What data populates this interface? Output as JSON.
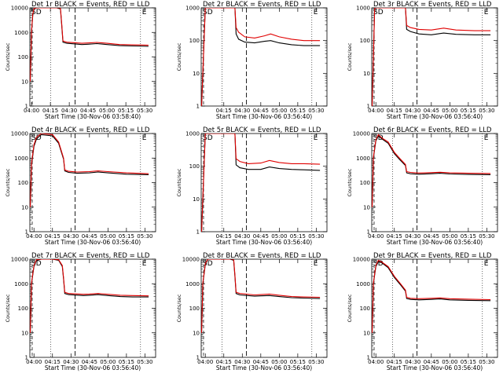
{
  "chart_data": [
    {
      "type": "line",
      "title": "Det 1r BLACK = Events, RED = LLD",
      "xlabel": "Start Time (30-Nov-06 03:58:40)",
      "ylabel": "Counts/sec",
      "yscale": "log",
      "ylim": [
        1,
        10000
      ],
      "xlim": [
        "03:58:40",
        "05:38:40"
      ],
      "xticks": [
        "04:00",
        "04:15",
        "04:30",
        "04:45",
        "05:00",
        "05:15",
        "05:30"
      ],
      "yticks": [
        "1",
        "10",
        "100",
        "1000",
        "10000"
      ],
      "markers": [
        "SD",
        "E"
      ],
      "grid": false,
      "series": [
        {
          "name": "Events",
          "color": "#000000",
          "x": [
            "03:59",
            "04:00",
            "04:01",
            "04:02",
            "04:04",
            "04:12",
            "04:20",
            "04:23",
            "04:24",
            "04:25",
            "04:28",
            "04:40",
            "04:45",
            "04:52",
            "05:00",
            "05:10",
            "05:20",
            "05:33"
          ],
          "y": [
            10,
            1000,
            5000,
            9000,
            10000,
            10000,
            10000,
            9000,
            2000,
            400,
            360,
            320,
            330,
            350,
            320,
            290,
            280,
            270
          ]
        },
        {
          "name": "LLD",
          "color": "#e00000",
          "x": [
            "03:59",
            "04:00",
            "04:01",
            "04:02",
            "04:04",
            "04:12",
            "04:20",
            "04:23",
            "04:24",
            "04:25",
            "04:28",
            "04:40",
            "04:45",
            "04:52",
            "05:00",
            "05:10",
            "05:20",
            "05:33"
          ],
          "y": [
            10,
            1100,
            5500,
            9500,
            10000,
            10000,
            10000,
            10000,
            2300,
            450,
            400,
            360,
            370,
            390,
            360,
            320,
            310,
            300
          ]
        }
      ]
    },
    {
      "type": "line",
      "title": "Det 2r BLACK = Events, RED = LLD",
      "xlabel": "Start Time (30-Nov-06 03:56:40)",
      "ylabel": "Counts/sec",
      "yscale": "log",
      "ylim": [
        1,
        1000
      ],
      "xlim": [
        "03:56:40",
        "05:38:40"
      ],
      "xticks": [
        "04:15",
        "04:30",
        "04:45",
        "05:00",
        "05:15",
        "05:30"
      ],
      "yticks": [
        "1",
        "10",
        "100",
        "1000"
      ],
      "markers": [
        "SD",
        "E"
      ],
      "grid": false,
      "series": [
        {
          "name": "Events",
          "color": "#000000",
          "x": [
            "03:57",
            "04:00",
            "04:20",
            "04:24",
            "04:25",
            "04:27",
            "04:32",
            "04:40",
            "04:48",
            "04:53",
            "05:00",
            "05:10",
            "05:20",
            "05:33"
          ],
          "y": [
            1,
            1000,
            1000,
            1000,
            160,
            110,
            90,
            85,
            95,
            100,
            85,
            75,
            70,
            70
          ]
        },
        {
          "name": "LLD",
          "color": "#e00000",
          "x": [
            "03:57",
            "04:00",
            "04:20",
            "04:24",
            "04:25",
            "04:27",
            "04:32",
            "04:40",
            "04:48",
            "04:53",
            "05:00",
            "05:10",
            "05:20",
            "05:33"
          ],
          "y": [
            1,
            1000,
            1000,
            1000,
            250,
            180,
            130,
            120,
            140,
            160,
            130,
            110,
            100,
            100
          ]
        }
      ]
    },
    {
      "type": "line",
      "title": "Det 3r BLACK = Events, RED = LLD",
      "xlabel": "Start Time (30-Nov-06 03:56:40)",
      "ylabel": "Counts/sec",
      "yscale": "log",
      "ylim": [
        1,
        1000
      ],
      "xlim": [
        "03:56:40",
        "05:38:40"
      ],
      "xticks": [
        "04:00",
        "04:15",
        "04:30",
        "04:45",
        "05:00",
        "05:15",
        "05:30"
      ],
      "yticks": [
        "1",
        "10",
        "100",
        "1000"
      ],
      "markers": [
        "SD",
        "E"
      ],
      "grid": false,
      "series": [
        {
          "name": "Events",
          "color": "#000000",
          "x": [
            "03:57",
            "03:59",
            "04:20",
            "04:24",
            "04:25",
            "04:28",
            "04:35",
            "04:45",
            "04:55",
            "05:05",
            "05:20",
            "05:33"
          ],
          "y": [
            1,
            1000,
            1000,
            1000,
            220,
            190,
            160,
            150,
            170,
            155,
            150,
            150
          ]
        },
        {
          "name": "LLD",
          "color": "#e00000",
          "x": [
            "03:57",
            "03:59",
            "04:20",
            "04:24",
            "04:25",
            "04:28",
            "04:35",
            "04:45",
            "04:55",
            "05:05",
            "05:20",
            "05:33"
          ],
          "y": [
            1,
            1000,
            1000,
            1000,
            290,
            250,
            220,
            210,
            240,
            210,
            200,
            200
          ]
        }
      ]
    },
    {
      "type": "line",
      "title": "Det 4r BLACK = Events, RED = LLD",
      "xlabel": "Start Time (30-Nov-06 03:56:40)",
      "ylabel": "Counts/sec",
      "yscale": "log",
      "ylim": [
        1,
        10000
      ],
      "xlim": [
        "03:56:40",
        "05:38:40"
      ],
      "xticks": [
        "04:00",
        "04:15",
        "04:30",
        "04:45",
        "05:00",
        "05:15",
        "05:30"
      ],
      "yticks": [
        "1",
        "10",
        "100",
        "1000",
        "10000"
      ],
      "markers": [
        "SD",
        "E"
      ],
      "grid": false,
      "series": [
        {
          "name": "Events",
          "color": "#000000",
          "x": [
            "03:57",
            "03:58",
            "04:00",
            "04:02",
            "04:06",
            "04:15",
            "04:20",
            "04:24",
            "04:25",
            "04:28",
            "04:35",
            "04:45",
            "04:52",
            "05:00",
            "05:15",
            "05:33"
          ],
          "y": [
            10,
            500,
            3000,
            6000,
            9000,
            8000,
            4000,
            900,
            300,
            260,
            240,
            250,
            270,
            250,
            220,
            210
          ]
        },
        {
          "name": "LLD",
          "color": "#e00000",
          "x": [
            "03:57",
            "03:58",
            "04:00",
            "04:02",
            "04:06",
            "04:15",
            "04:20",
            "04:24",
            "04:25",
            "04:28",
            "04:35",
            "04:45",
            "04:52",
            "05:00",
            "05:15",
            "05:33"
          ],
          "y": [
            10,
            600,
            3500,
            7000,
            10000,
            9000,
            4500,
            1000,
            330,
            290,
            270,
            280,
            300,
            280,
            250,
            230
          ]
        }
      ]
    },
    {
      "type": "line",
      "title": "Det 5r BLACK = Events, RED = LLD",
      "xlabel": "Start Time (30-Nov-06 03:56:40)",
      "ylabel": "Counts/sec",
      "yscale": "log",
      "ylim": [
        1,
        1000
      ],
      "xlim": [
        "03:56:40",
        "05:38:40"
      ],
      "xticks": [
        "04:15",
        "04:30",
        "04:45",
        "05:00",
        "05:15",
        "05:30"
      ],
      "yticks": [
        "1",
        "10",
        "100",
        "1000"
      ],
      "markers": [
        "SD",
        "E"
      ],
      "grid": false,
      "series": [
        {
          "name": "Events",
          "color": "#000000",
          "x": [
            "03:57",
            "04:00",
            "04:20",
            "04:24",
            "04:25",
            "04:28",
            "04:35",
            "04:45",
            "04:52",
            "05:00",
            "05:10",
            "05:20",
            "05:33"
          ],
          "y": [
            1,
            1000,
            1000,
            1000,
            110,
            90,
            80,
            80,
            95,
            85,
            80,
            78,
            75
          ]
        },
        {
          "name": "LLD",
          "color": "#e00000",
          "x": [
            "03:57",
            "04:00",
            "04:20",
            "04:24",
            "04:25",
            "04:28",
            "04:35",
            "04:45",
            "04:52",
            "05:00",
            "05:10",
            "05:20",
            "05:33"
          ],
          "y": [
            1,
            1000,
            1000,
            1000,
            170,
            140,
            120,
            125,
            150,
            130,
            120,
            120,
            115
          ]
        }
      ]
    },
    {
      "type": "line",
      "title": "Det 6r BLACK = Events, RED = LLD",
      "xlabel": "Start Time (30-Nov-06 03:56:40)",
      "ylabel": "Counts/sec",
      "yscale": "log",
      "ylim": [
        1,
        10000
      ],
      "xlim": [
        "03:56:40",
        "05:38:40"
      ],
      "xticks": [
        "04:00",
        "04:15",
        "04:30",
        "04:45",
        "05:00",
        "05:15",
        "05:30"
      ],
      "yticks": [
        "1",
        "10",
        "100",
        "1000",
        "10000"
      ],
      "markers": [
        "SD",
        "E"
      ],
      "grid": false,
      "series": [
        {
          "name": "Events",
          "color": "#000000",
          "x": [
            "03:57",
            "03:58",
            "04:00",
            "04:02",
            "04:05",
            "04:10",
            "04:15",
            "04:20",
            "04:24",
            "04:25",
            "04:28",
            "04:35",
            "04:45",
            "04:52",
            "05:00",
            "05:15",
            "05:33"
          ],
          "y": [
            10,
            1000,
            5000,
            8000,
            6000,
            4000,
            1500,
            800,
            500,
            250,
            230,
            220,
            230,
            240,
            225,
            215,
            210
          ]
        },
        {
          "name": "LLD",
          "color": "#e00000",
          "x": [
            "03:57",
            "03:58",
            "04:00",
            "04:02",
            "04:05",
            "04:10",
            "04:15",
            "04:20",
            "04:24",
            "04:25",
            "04:28",
            "04:35",
            "04:45",
            "04:52",
            "05:00",
            "05:15",
            "05:33"
          ],
          "y": [
            10,
            1100,
            5500,
            9000,
            6500,
            4500,
            1700,
            900,
            550,
            280,
            260,
            245,
            255,
            265,
            250,
            240,
            235
          ]
        }
      ]
    },
    {
      "type": "line",
      "title": "Det 7r BLACK = Events, RED = LLD",
      "xlabel": "Start Time (30-Nov-06 03:56:40)",
      "ylabel": "Counts/sec",
      "yscale": "log",
      "ylim": [
        1,
        10000
      ],
      "xlim": [
        "03:56:40",
        "05:38:40"
      ],
      "xticks": [
        "04:00",
        "04:15",
        "04:30",
        "04:45",
        "05:00",
        "05:15",
        "05:30"
      ],
      "yticks": [
        "1",
        "10",
        "100",
        "1000",
        "10000"
      ],
      "markers": [
        "SD",
        "E"
      ],
      "grid": false,
      "series": [
        {
          "name": "Events",
          "color": "#000000",
          "x": [
            "03:57",
            "03:58",
            "04:00",
            "04:02",
            "04:06",
            "04:15",
            "04:20",
            "04:23",
            "04:24",
            "04:25",
            "04:28",
            "04:40",
            "04:45",
            "04:52",
            "05:00",
            "05:10",
            "05:20",
            "05:33"
          ],
          "y": [
            10,
            1000,
            5000,
            9000,
            10000,
            10000,
            9000,
            5000,
            1500,
            400,
            360,
            330,
            340,
            360,
            330,
            300,
            290,
            290
          ]
        },
        {
          "name": "LLD",
          "color": "#e00000",
          "x": [
            "03:57",
            "03:58",
            "04:00",
            "04:02",
            "04:06",
            "04:15",
            "04:20",
            "04:23",
            "04:24",
            "04:25",
            "04:28",
            "04:40",
            "04:45",
            "04:52",
            "05:00",
            "05:10",
            "05:20",
            "05:33"
          ],
          "y": [
            10,
            1100,
            5500,
            9500,
            10000,
            10000,
            9500,
            5500,
            1700,
            450,
            400,
            370,
            380,
            400,
            370,
            340,
            330,
            320
          ]
        }
      ]
    },
    {
      "type": "line",
      "title": "Det 8r BLACK = Events, RED = LLD",
      "xlabel": "Start Time (30-Nov-06 03:56:40)",
      "ylabel": "Counts/sec",
      "yscale": "log",
      "ylim": [
        1,
        10000
      ],
      "xlim": [
        "03:56:40",
        "05:38:40"
      ],
      "xticks": [
        "04:00",
        "04:15",
        "04:30",
        "04:45",
        "05:00",
        "05:15",
        "05:30"
      ],
      "yticks": [
        "1",
        "10",
        "100",
        "1000",
        "10000"
      ],
      "markers": [
        "SD",
        "E"
      ],
      "grid": false,
      "series": [
        {
          "name": "Events",
          "color": "#000000",
          "x": [
            "03:57",
            "03:58",
            "04:00",
            "04:02",
            "04:04",
            "04:20",
            "04:23",
            "04:24",
            "04:25",
            "04:28",
            "04:40",
            "04:45",
            "04:52",
            "05:00",
            "05:10",
            "05:20",
            "05:33"
          ],
          "y": [
            10,
            1000,
            6000,
            10000,
            10000,
            10000,
            9000,
            2000,
            400,
            350,
            310,
            320,
            330,
            300,
            270,
            260,
            250
          ]
        },
        {
          "name": "LLD",
          "color": "#e00000",
          "x": [
            "03:57",
            "03:58",
            "04:00",
            "04:02",
            "04:04",
            "04:20",
            "04:23",
            "04:24",
            "04:25",
            "04:28",
            "04:40",
            "04:45",
            "04:52",
            "05:00",
            "05:10",
            "05:20",
            "05:33"
          ],
          "y": [
            10,
            1100,
            6500,
            10000,
            10000,
            10000,
            10000,
            2300,
            450,
            400,
            350,
            360,
            380,
            340,
            300,
            290,
            280
          ]
        }
      ]
    },
    {
      "type": "line",
      "title": "Det 9r BLACK = Events, RED = LLD",
      "xlabel": "Start Time (30-Nov-06 03:56:40)",
      "ylabel": "Counts/sec",
      "yscale": "log",
      "ylim": [
        1,
        10000
      ],
      "xlim": [
        "03:56:40",
        "05:38:40"
      ],
      "xticks": [
        "04:00",
        "04:15",
        "04:30",
        "04:45",
        "05:00",
        "05:15",
        "05:30"
      ],
      "yticks": [
        "1",
        "10",
        "100",
        "1000",
        "10000"
      ],
      "markers": [
        "SD",
        "E"
      ],
      "grid": false,
      "series": [
        {
          "name": "Events",
          "color": "#000000",
          "x": [
            "03:57",
            "03:58",
            "04:00",
            "04:02",
            "04:05",
            "04:10",
            "04:15",
            "04:20",
            "04:24",
            "04:25",
            "04:28",
            "04:35",
            "04:45",
            "04:52",
            "05:00",
            "05:15",
            "05:33"
          ],
          "y": [
            10,
            1000,
            5000,
            8000,
            7000,
            4500,
            1800,
            900,
            500,
            250,
            230,
            220,
            230,
            240,
            220,
            210,
            205
          ]
        },
        {
          "name": "LLD",
          "color": "#e00000",
          "x": [
            "03:57",
            "03:58",
            "04:00",
            "04:02",
            "04:05",
            "04:10",
            "04:15",
            "04:20",
            "04:24",
            "04:25",
            "04:28",
            "04:35",
            "04:45",
            "04:52",
            "05:00",
            "05:15",
            "05:33"
          ],
          "y": [
            10,
            1100,
            5500,
            9000,
            7500,
            5000,
            2000,
            1000,
            550,
            280,
            255,
            245,
            255,
            265,
            245,
            235,
            225
          ]
        }
      ]
    }
  ]
}
